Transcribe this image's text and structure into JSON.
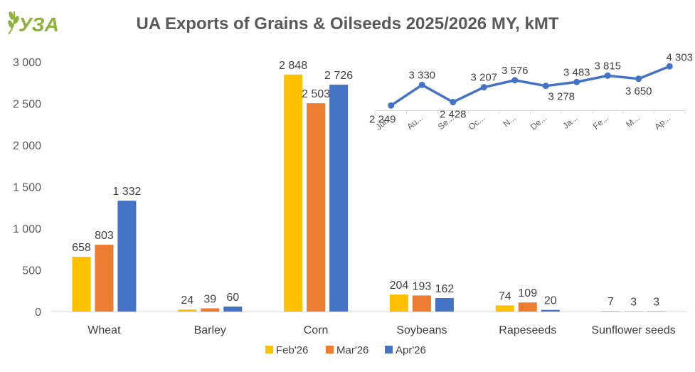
{
  "logo": {
    "text": "УЗА"
  },
  "chart_data": [
    {
      "type": "bar",
      "title": "UA Exports of Grains & Oilseeds 2025/2026 MY, kMT",
      "categories": [
        "Wheat",
        "Barley",
        "Corn",
        "Soybeans",
        "Rapeseeds",
        "Sunflower seeds"
      ],
      "series": [
        {
          "name": "Feb'26",
          "color": "#FFC000",
          "values": [
            658,
            24,
            2848,
            204,
            74,
            7
          ],
          "labels": [
            "658",
            "24",
            "2 848",
            "204",
            "74",
            "7"
          ]
        },
        {
          "name": "Mar'26",
          "color": "#ED7D31",
          "values": [
            803,
            39,
            2503,
            193,
            109,
            3
          ],
          "labels": [
            "803",
            "39",
            "2 503",
            "193",
            "109",
            "3"
          ]
        },
        {
          "name": "Apr'26",
          "color": "#4472C4",
          "values": [
            1332,
            60,
            2726,
            162,
            20,
            3
          ],
          "labels": [
            "1 332",
            "60",
            "2 726",
            "162",
            "20",
            "3"
          ]
        }
      ],
      "ylim": [
        0,
        3000
      ],
      "yticks": [
        0,
        500,
        1000,
        1500,
        2000,
        2500,
        3000
      ],
      "ytick_labels": [
        "0",
        "500",
        "1 000",
        "1 500",
        "2 000",
        "2 500",
        "3 000"
      ],
      "legend": "bottom",
      "grid": false
    },
    {
      "type": "line",
      "categories": [
        "Jul...",
        "Au...",
        "Se...",
        "Oc...",
        "N...",
        "De...",
        "Ja...",
        "Fe...",
        "M...",
        "Ap..."
      ],
      "series": [
        {
          "color": "#4472C4",
          "values": [
            2249,
            3330,
            2428,
            3207,
            3576,
            3278,
            3483,
            3815,
            3650,
            4303
          ],
          "labels": [
            "2 249",
            "3 330",
            "2 428",
            "3 207",
            "3 576",
            "3 278",
            "3 483",
            "3 815",
            "3 650",
            "4 303"
          ]
        }
      ]
    }
  ]
}
